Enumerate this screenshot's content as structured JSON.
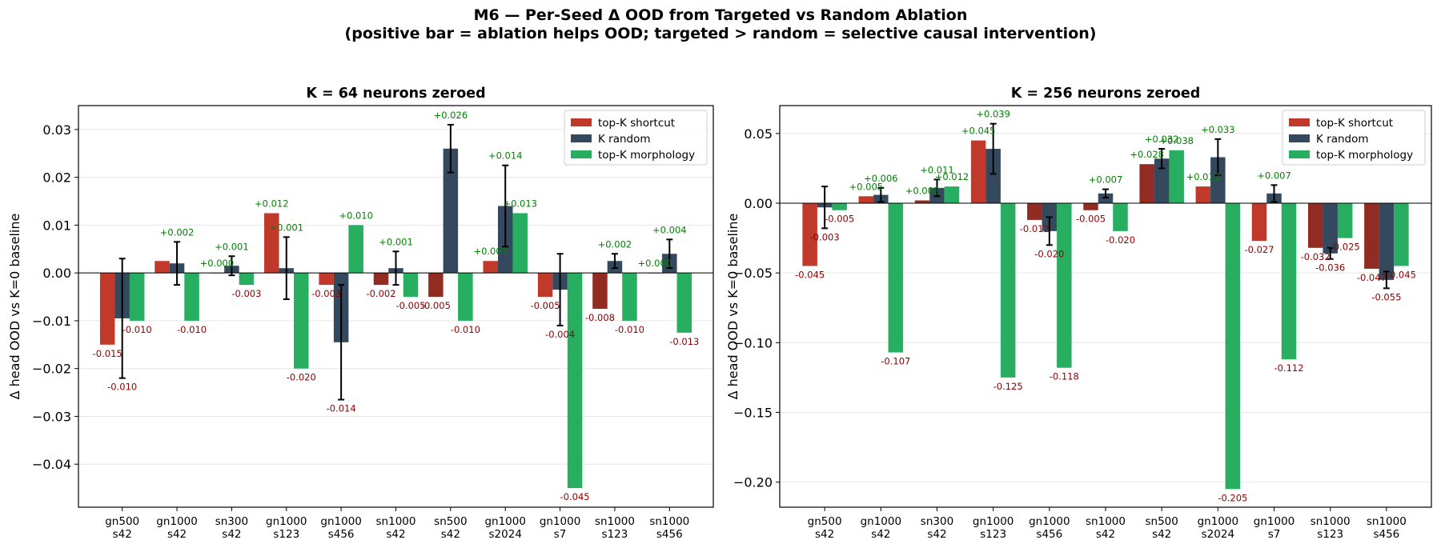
{
  "figure": {
    "title_line1": "M6 — Per-Seed Δ OOD from Targeted vs Random Ablation",
    "title_line2": "(positive bar = ablation helps OOD; targeted > random = selective causal intervention)"
  },
  "colors": {
    "shortcut": "#c0392b",
    "shortcut_dark": "#922b21",
    "random": "#34495e",
    "morphology": "#27ae60",
    "label_pos": "#008000",
    "label_neg": "#8b0000",
    "grid": "#e6e6e6"
  },
  "chart_data": [
    {
      "type": "bar",
      "title": "K = 64 neurons zeroed",
      "ylabel": "Δ head OOD vs K=0 baseline",
      "ylim": [
        -0.049,
        0.035
      ],
      "yticks": [
        -0.04,
        -0.03,
        -0.02,
        -0.01,
        0.0,
        0.01,
        0.02,
        0.03
      ],
      "ytick_labels": [
        "−0.04",
        "−0.03",
        "−0.02",
        "−0.01",
        "0.00",
        "0.01",
        "0.02",
        "0.03"
      ],
      "grid": "y",
      "legend_position": "upper right",
      "categories": [
        "gn500\ns42",
        "gn1000\ns42",
        "sn300\ns42",
        "gn1000\ns123",
        "gn1000\ns456",
        "sn1000\ns42",
        "sn500\ns42",
        "gn1000\ns2024",
        "gn1000\ns7",
        "sn1000\ns123",
        "sn1000\ns456"
      ],
      "series": [
        {
          "name": "top-K shortcut",
          "values": [
            -0.015,
            0.0025,
            0.0,
            0.0125,
            -0.0025,
            -0.0025,
            -0.005,
            0.0025,
            -0.005,
            -0.0075,
            0.0
          ],
          "labels": [
            "-0.015",
            "",
            "+0.000",
            "+0.012",
            "-0.003",
            "-0.002",
            "-0.005",
            "+0.003",
            "-0.005",
            "-0.008",
            "+0.000"
          ],
          "darker": [
            false,
            false,
            false,
            false,
            false,
            true,
            true,
            false,
            false,
            true,
            false
          ]
        },
        {
          "name": "K random",
          "values": [
            -0.0095,
            0.002,
            0.0015,
            0.001,
            -0.0145,
            0.001,
            0.026,
            0.014,
            -0.0035,
            0.0025,
            0.004
          ],
          "errors": [
            0.0125,
            0.0045,
            0.002,
            0.0065,
            0.012,
            0.0035,
            0.005,
            0.0085,
            0.0075,
            0.0015,
            0.003
          ],
          "labels": [
            "-0.010",
            "+0.002",
            "+0.001",
            "+0.001",
            "-0.014",
            "+0.001",
            "+0.026",
            "+0.014",
            "-0.004",
            "+0.002",
            "+0.004"
          ]
        },
        {
          "name": "top-K morphology",
          "values": [
            -0.01,
            -0.01,
            -0.0025,
            -0.02,
            0.01,
            -0.005,
            -0.01,
            0.0125,
            -0.045,
            -0.01,
            -0.0125
          ],
          "labels": [
            "-0.010",
            "-0.010",
            "-0.003",
            "-0.020",
            "+0.010",
            "-0.005",
            "-0.010",
            "+0.013",
            "-0.045",
            "-0.010",
            "-0.013"
          ]
        }
      ]
    },
    {
      "type": "bar",
      "title": "K = 256 neurons zeroed",
      "ylabel": "Δ head OOD vs K=0 baseline",
      "ylim": [
        -0.218,
        0.07
      ],
      "yticks": [
        -0.2,
        -0.15,
        -0.1,
        -0.05,
        0.0,
        0.05
      ],
      "ytick_labels": [
        "−0.20",
        "−0.15",
        "−0.10",
        "−0.05",
        "0.00",
        "0.05"
      ],
      "grid": "y",
      "legend_position": "upper right",
      "categories": [
        "gn500\ns42",
        "gn1000\ns42",
        "sn300\ns42",
        "gn1000\ns123",
        "gn1000\ns456",
        "sn1000\ns42",
        "sn500\ns42",
        "gn1000\ns2024",
        "gn1000\ns7",
        "sn1000\ns123",
        "sn1000\ns456"
      ],
      "series": [
        {
          "name": "top-K shortcut",
          "values": [
            -0.045,
            0.005,
            0.002,
            0.045,
            -0.012,
            -0.005,
            0.028,
            0.012,
            -0.027,
            -0.032,
            -0.047
          ],
          "labels": [
            "-0.045",
            "+0.005",
            "+0.002",
            "+0.045",
            "-0.012",
            "-0.005",
            "+0.028",
            "+0.012",
            "-0.027",
            "-0.032",
            "-0.047"
          ],
          "darker": [
            false,
            false,
            true,
            false,
            true,
            true,
            true,
            false,
            false,
            true,
            true
          ]
        },
        {
          "name": "K random",
          "values": [
            -0.003,
            0.006,
            0.011,
            0.039,
            -0.02,
            0.007,
            0.032,
            0.033,
            0.007,
            -0.036,
            -0.055
          ],
          "errors": [
            0.015,
            0.005,
            0.006,
            0.018,
            0.01,
            0.003,
            0.007,
            0.013,
            0.006,
            0.004,
            0.006
          ],
          "labels": [
            "-0.003",
            "+0.006",
            "+0.011",
            "+0.039",
            "-0.020",
            "+0.007",
            "+0.032",
            "+0.033",
            "+0.007",
            "-0.036",
            "-0.055"
          ]
        },
        {
          "name": "top-K morphology",
          "values": [
            -0.005,
            -0.107,
            0.012,
            -0.125,
            -0.118,
            -0.02,
            0.038,
            -0.205,
            -0.112,
            -0.025,
            -0.045
          ],
          "labels": [
            "-0.005",
            "-0.107",
            "+0.012",
            "-0.125",
            "-0.118",
            "-0.020",
            "+0.038",
            "-0.205",
            "-0.112",
            "-0.025",
            "-0.045"
          ]
        }
      ]
    }
  ]
}
